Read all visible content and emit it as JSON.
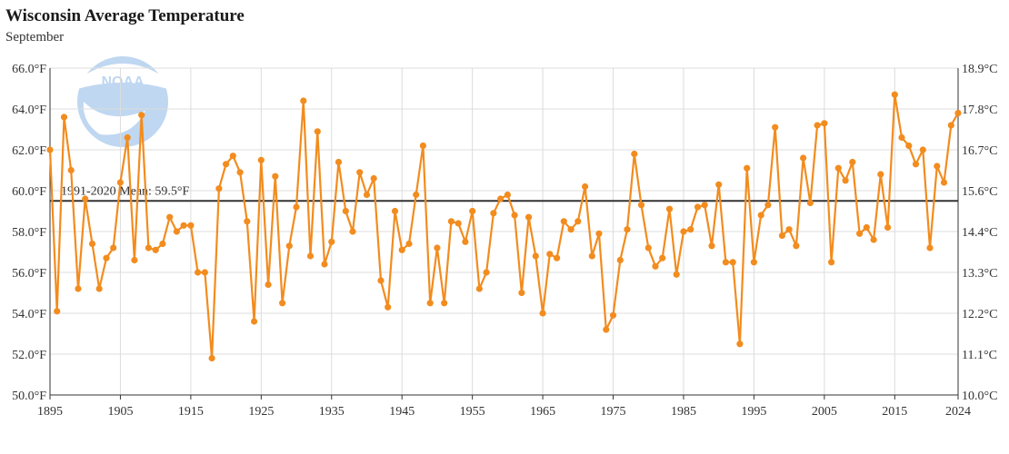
{
  "header": {
    "title": "Wisconsin Average Temperature",
    "subtitle": "September"
  },
  "logo": {
    "text": "NOAA"
  },
  "chart_data": {
    "type": "line",
    "title": "Wisconsin Average Temperature",
    "subtitle": "September",
    "x_range": [
      1895,
      2024
    ],
    "ylim": [
      50,
      66
    ],
    "ylim_right": [
      10.0,
      18.9
    ],
    "x_ticks": [
      1895,
      1905,
      1915,
      1925,
      1935,
      1945,
      1955,
      1965,
      1975,
      1985,
      1995,
      2005,
      2015,
      2024
    ],
    "y_ticks_left": [
      "50.0°F",
      "52.0°F",
      "54.0°F",
      "56.0°F",
      "58.0°F",
      "60.0°F",
      "62.0°F",
      "64.0°F",
      "66.0°F"
    ],
    "y_ticks_right": [
      "10.0°C",
      "11.1°C",
      "12.2°C",
      "13.3°C",
      "14.4°C",
      "15.6°C",
      "16.7°C",
      "17.8°C",
      "18.9°C"
    ],
    "grid": true,
    "colors": {
      "series": "#f28c1e",
      "mean_line": "#333333",
      "grid": "#dcdcdc"
    },
    "mean_line": {
      "value": 59.5,
      "label": "1991-2020 Mean: 59.5°F"
    },
    "series": [
      {
        "x": [
          1895,
          1896,
          1897,
          1898,
          1899,
          1900,
          1901,
          1902,
          1903,
          1904,
          1905,
          1906,
          1907,
          1908,
          1909,
          1910,
          1911,
          1912,
          1913,
          1914,
          1915,
          1916,
          1917,
          1918,
          1919,
          1920,
          1921,
          1922,
          1923,
          1924,
          1925,
          1926,
          1927,
          1928,
          1929,
          1930,
          1931,
          1932,
          1933,
          1934,
          1935,
          1936,
          1937,
          1938,
          1939,
          1940,
          1941,
          1942,
          1943,
          1944,
          1945,
          1946,
          1947,
          1948,
          1949,
          1950,
          1951,
          1952,
          1953,
          1954,
          1955,
          1956,
          1957,
          1958,
          1959,
          1960,
          1961,
          1962,
          1963,
          1964,
          1965,
          1966,
          1967,
          1968,
          1969,
          1970,
          1971,
          1972,
          1973,
          1974,
          1975,
          1976,
          1977,
          1978,
          1979,
          1980,
          1981,
          1982,
          1983,
          1984,
          1985,
          1986,
          1987,
          1988,
          1989,
          1990,
          1991,
          1992,
          1993,
          1994,
          1995,
          1996,
          1997,
          1998,
          1999,
          2000,
          2001,
          2002,
          2003,
          2004,
          2005,
          2006,
          2007,
          2008,
          2009,
          2010,
          2011,
          2012,
          2013,
          2014,
          2015,
          2016,
          2017,
          2018,
          2019,
          2020,
          2021,
          2022,
          2023,
          2024
        ],
        "values": [
          62.0,
          54.1,
          63.6,
          61.0,
          55.2,
          59.6,
          57.4,
          55.2,
          56.7,
          57.2,
          60.4,
          62.6,
          56.6,
          63.7,
          57.2,
          57.1,
          57.4,
          58.7,
          58.0,
          58.3,
          58.3,
          56.0,
          56.0,
          51.8,
          60.1,
          61.3,
          61.7,
          60.9,
          58.5,
          53.6,
          61.5,
          55.4,
          60.7,
          54.5,
          57.3,
          59.2,
          64.4,
          56.8,
          62.9,
          56.4,
          57.5,
          61.4,
          59.0,
          58.0,
          60.9,
          59.8,
          60.6,
          55.6,
          54.3,
          59.0,
          57.1,
          57.4,
          59.8,
          62.2,
          54.5,
          57.2,
          54.5,
          58.5,
          58.4,
          57.5,
          59.0,
          55.2,
          56.0,
          58.9,
          59.6,
          59.8,
          58.8,
          55.0,
          58.7,
          56.8,
          54.0,
          56.9,
          56.7,
          58.5,
          58.1,
          58.5,
          60.2,
          56.8,
          57.9,
          53.2,
          53.9,
          56.6,
          58.1,
          61.8,
          59.3,
          57.2,
          56.3,
          56.7,
          59.1,
          55.9,
          58.0,
          58.1,
          59.2,
          59.3,
          57.3,
          60.3,
          56.5,
          56.5,
          52.5,
          61.1,
          56.5,
          58.8,
          59.3,
          63.1,
          57.8,
          58.1,
          57.3,
          61.6,
          59.4,
          63.2,
          63.3,
          56.5,
          61.1,
          60.5,
          61.4,
          57.9,
          58.2,
          57.6,
          60.8,
          58.2,
          64.7,
          62.6,
          62.2,
          61.3,
          62.0,
          57.2,
          61.2,
          60.4,
          63.2,
          63.8
        ]
      }
    ]
  }
}
